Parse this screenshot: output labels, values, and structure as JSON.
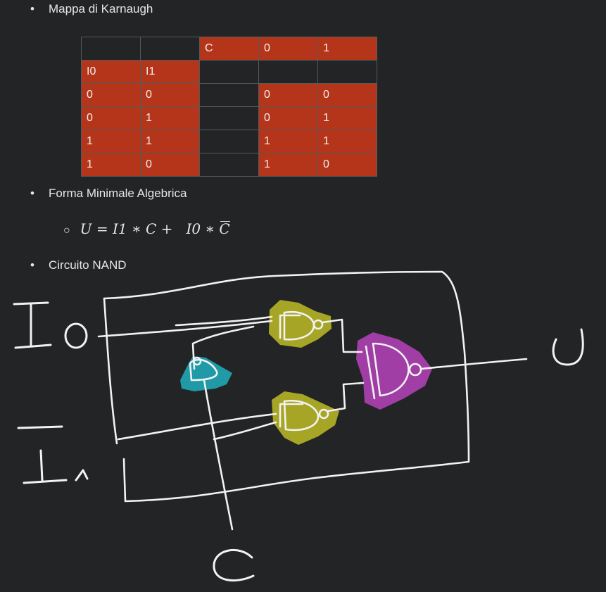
{
  "bullets": {
    "dot": "•",
    "karnaugh": "Mappa di Karnaugh",
    "minimal": "Forma Minimale Algebrica",
    "nand": "Circuito NAND"
  },
  "kmap": {
    "rows": [
      [
        "",
        "",
        "C",
        "0",
        "1"
      ],
      [
        "I0",
        "I1",
        "",
        "",
        ""
      ],
      [
        "0",
        "0",
        "",
        "0",
        "0"
      ],
      [
        "0",
        "1",
        "",
        "0",
        "1"
      ],
      [
        "1",
        "1",
        "",
        "1",
        "1"
      ],
      [
        "1",
        "0",
        "",
        "1",
        "0"
      ]
    ],
    "highlight": [
      [
        false,
        false,
        true,
        true,
        true
      ],
      [
        true,
        true,
        false,
        false,
        false
      ],
      [
        true,
        true,
        false,
        true,
        true
      ],
      [
        true,
        true,
        false,
        true,
        true
      ],
      [
        true,
        true,
        false,
        true,
        true
      ],
      [
        true,
        true,
        false,
        true,
        true
      ]
    ],
    "highlight_color": "#b5351a"
  },
  "formula": {
    "sub_bullet": "○",
    "lhs": "U",
    "eq": " = ",
    "t1a": "I1",
    "op1": " ∗ ",
    "t1b": "C",
    "plus": " +   ",
    "t2a": "I0",
    "op2": " ∗ ",
    "t2b": "C"
  },
  "sketch": {
    "labels": {
      "i0": "I0",
      "i1": "I1",
      "c": "C",
      "u": "U"
    },
    "colors": {
      "stroke": "#f2f2f2",
      "nand_top": "#a7a525",
      "nand_bottom": "#a7a525",
      "not_gate": "#1f9aa6",
      "nand_out": "#a03ea6"
    },
    "gates": [
      "top-nand",
      "bottom-nand",
      "not-nand",
      "output-nand"
    ]
  }
}
